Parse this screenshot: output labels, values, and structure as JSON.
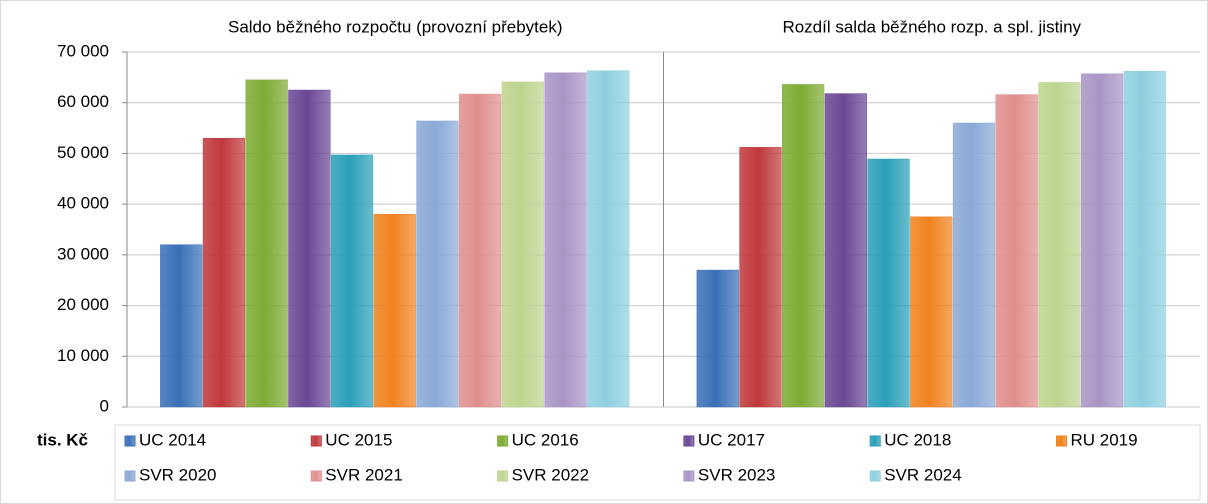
{
  "chart_data": {
    "type": "bar",
    "categories": [
      "Saldo běžného rozpočtu (provozní přebytek)",
      "Rozdíl salda běžného rozp. a spl. jistiny"
    ],
    "y_label": "tis. Kč",
    "ylim": [
      0,
      70000
    ],
    "yticks": [
      0,
      {
        "value": 10000,
        "label": "10 000"
      },
      {
        "value": 20000,
        "label": "20 000"
      },
      {
        "value": 30000,
        "label": "30 000"
      },
      {
        "value": 40000,
        "label": "40 000"
      },
      {
        "value": 50000,
        "label": "50 000"
      },
      {
        "value": 60000,
        "label": "60 000"
      },
      {
        "value": 70000,
        "label": "70 000"
      }
    ],
    "grid": true,
    "legend": "bottom",
    "series": [
      {
        "name": "UC 2014",
        "color": "#3a70b8",
        "values": [
          32000,
          27000
        ]
      },
      {
        "name": "UC 2015",
        "color": "#c0393b",
        "values": [
          53000,
          51200
        ]
      },
      {
        "name": "UC 2016",
        "color": "#7dab34",
        "values": [
          64500,
          63600
        ]
      },
      {
        "name": "UC 2017",
        "color": "#6a4895",
        "values": [
          62500,
          61800
        ]
      },
      {
        "name": "UC 2018",
        "color": "#2aa0b8",
        "values": [
          49700,
          48900
        ]
      },
      {
        "name": "RU 2019",
        "color": "#f0821e",
        "values": [
          38000,
          37500
        ]
      },
      {
        "name": "SVR 2020",
        "color": "#8aa9d6",
        "values": [
          56400,
          56000
        ]
      },
      {
        "name": "SVR 2021",
        "color": "#df8f8c",
        "values": [
          61700,
          61600
        ]
      },
      {
        "name": "SVR 2022",
        "color": "#bdd48f",
        "values": [
          64100,
          64000
        ]
      },
      {
        "name": "SVR 2023",
        "color": "#a995c6",
        "values": [
          65900,
          65700
        ]
      },
      {
        "name": "SVR 2024",
        "color": "#8fcfe0",
        "values": [
          66300,
          66200
        ]
      }
    ]
  }
}
